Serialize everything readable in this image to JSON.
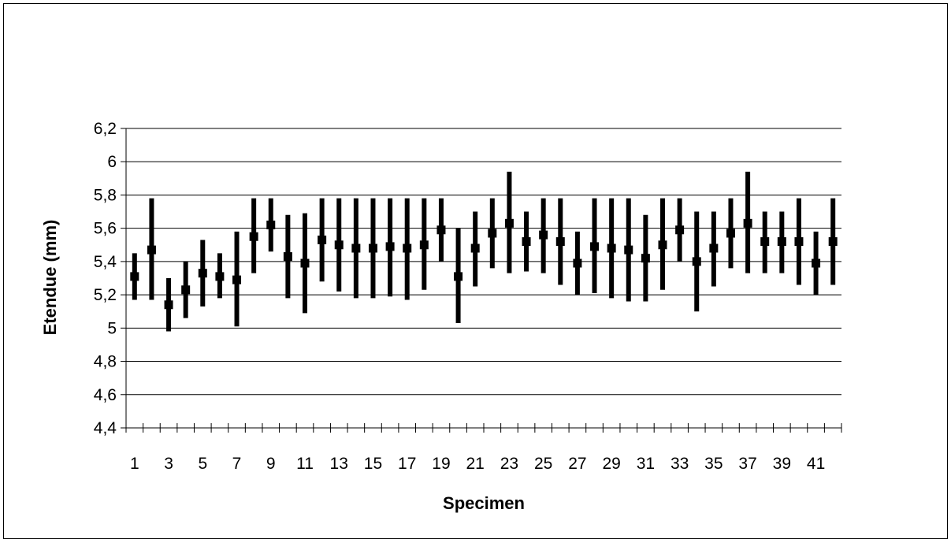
{
  "chart_data": {
    "type": "range",
    "xlabel": "Specimen",
    "ylabel": "Etendue (mm)",
    "ylim": [
      4.4,
      6.2
    ],
    "ytick_step": 0.2,
    "ytick_labels": [
      "4,4",
      "4,6",
      "4,8",
      "5",
      "5,2",
      "5,4",
      "5,6",
      "5,8",
      "6",
      "6,2"
    ],
    "x_tick_labels": [
      "1",
      "3",
      "5",
      "7",
      "9",
      "11",
      "13",
      "15",
      "17",
      "19",
      "21",
      "23",
      "25",
      "27",
      "29",
      "31",
      "33",
      "35",
      "37",
      "39",
      "41"
    ],
    "grid": true,
    "legend": "none",
    "color": "#000000",
    "specimens": [
      {
        "x": 1,
        "mean": 5.31,
        "min": 5.17,
        "max": 5.45
      },
      {
        "x": 2,
        "mean": 5.47,
        "min": 5.17,
        "max": 5.78
      },
      {
        "x": 3,
        "mean": 5.14,
        "min": 4.98,
        "max": 5.3
      },
      {
        "x": 4,
        "mean": 5.23,
        "min": 5.06,
        "max": 5.4
      },
      {
        "x": 5,
        "mean": 5.33,
        "min": 5.13,
        "max": 5.53
      },
      {
        "x": 6,
        "mean": 5.31,
        "min": 5.18,
        "max": 5.45
      },
      {
        "x": 7,
        "mean": 5.29,
        "min": 5.01,
        "max": 5.58
      },
      {
        "x": 8,
        "mean": 5.55,
        "min": 5.33,
        "max": 5.78
      },
      {
        "x": 9,
        "mean": 5.62,
        "min": 5.46,
        "max": 5.78
      },
      {
        "x": 10,
        "mean": 5.43,
        "min": 5.18,
        "max": 5.68
      },
      {
        "x": 11,
        "mean": 5.39,
        "min": 5.09,
        "max": 5.69
      },
      {
        "x": 12,
        "mean": 5.53,
        "min": 5.28,
        "max": 5.78
      },
      {
        "x": 13,
        "mean": 5.5,
        "min": 5.22,
        "max": 5.78
      },
      {
        "x": 14,
        "mean": 5.48,
        "min": 5.18,
        "max": 5.78
      },
      {
        "x": 15,
        "mean": 5.48,
        "min": 5.18,
        "max": 5.78
      },
      {
        "x": 16,
        "mean": 5.49,
        "min": 5.19,
        "max": 5.78
      },
      {
        "x": 17,
        "mean": 5.48,
        "min": 5.17,
        "max": 5.78
      },
      {
        "x": 18,
        "mean": 5.5,
        "min": 5.23,
        "max": 5.78
      },
      {
        "x": 19,
        "mean": 5.59,
        "min": 5.4,
        "max": 5.78
      },
      {
        "x": 20,
        "mean": 5.31,
        "min": 5.03,
        "max": 5.6
      },
      {
        "x": 21,
        "mean": 5.48,
        "min": 5.25,
        "max": 5.7
      },
      {
        "x": 22,
        "mean": 5.57,
        "min": 5.36,
        "max": 5.78
      },
      {
        "x": 23,
        "mean": 5.63,
        "min": 5.33,
        "max": 5.94
      },
      {
        "x": 24,
        "mean": 5.52,
        "min": 5.34,
        "max": 5.7
      },
      {
        "x": 25,
        "mean": 5.56,
        "min": 5.33,
        "max": 5.78
      },
      {
        "x": 26,
        "mean": 5.52,
        "min": 5.26,
        "max": 5.78
      },
      {
        "x": 27,
        "mean": 5.39,
        "min": 5.2,
        "max": 5.58
      },
      {
        "x": 28,
        "mean": 5.49,
        "min": 5.21,
        "max": 5.78
      },
      {
        "x": 29,
        "mean": 5.48,
        "min": 5.18,
        "max": 5.78
      },
      {
        "x": 30,
        "mean": 5.47,
        "min": 5.16,
        "max": 5.78
      },
      {
        "x": 31,
        "mean": 5.42,
        "min": 5.16,
        "max": 5.68
      },
      {
        "x": 32,
        "mean": 5.5,
        "min": 5.23,
        "max": 5.78
      },
      {
        "x": 33,
        "mean": 5.59,
        "min": 5.4,
        "max": 5.78
      },
      {
        "x": 34,
        "mean": 5.4,
        "min": 5.1,
        "max": 5.7
      },
      {
        "x": 35,
        "mean": 5.48,
        "min": 5.25,
        "max": 5.7
      },
      {
        "x": 36,
        "mean": 5.57,
        "min": 5.36,
        "max": 5.78
      },
      {
        "x": 37,
        "mean": 5.63,
        "min": 5.33,
        "max": 5.94
      },
      {
        "x": 38,
        "mean": 5.52,
        "min": 5.33,
        "max": 5.7
      },
      {
        "x": 39,
        "mean": 5.52,
        "min": 5.33,
        "max": 5.7
      },
      {
        "x": 40,
        "mean": 5.52,
        "min": 5.26,
        "max": 5.78
      },
      {
        "x": 41,
        "mean": 5.39,
        "min": 5.2,
        "max": 5.58
      },
      {
        "x": 42,
        "mean": 5.52,
        "min": 5.26,
        "max": 5.78
      }
    ]
  }
}
